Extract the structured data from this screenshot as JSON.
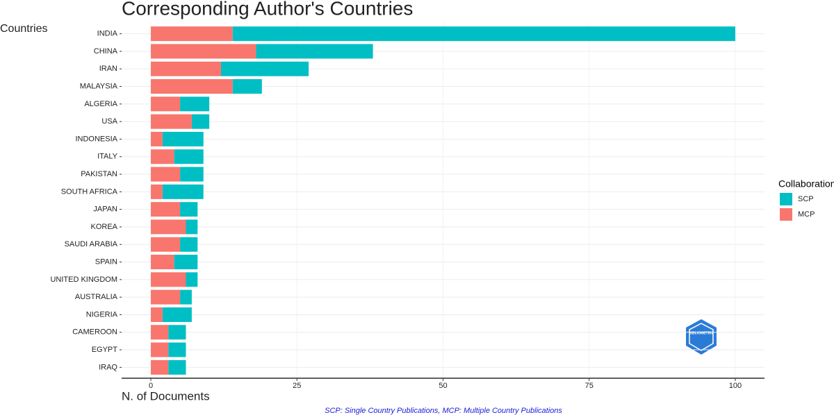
{
  "chart_data": {
    "type": "stacked-bar-horizontal",
    "title": "Corresponding Author's Countries",
    "y_label": "Countries",
    "x_label": "N. of Documents",
    "caption": "SCP: Single Country Publications, MCP: Multiple Country Publications",
    "legend_title": "Collaboration",
    "logo_text": "BIBLIOMETRIX",
    "categories": [
      "INDIA",
      "CHINA",
      "IRAN",
      "MALAYSIA",
      "ALGERIA",
      "USA",
      "INDONESIA",
      "ITALY",
      "PAKISTAN",
      "SOUTH AFRICA",
      "JAPAN",
      "KOREA",
      "SAUDI ARABIA",
      "SPAIN",
      "UNITED KINGDOM",
      "AUSTRALIA",
      "NIGERIA",
      "CAMEROON",
      "EGYPT",
      "IRAQ"
    ],
    "series": [
      {
        "name": "SCP",
        "color": "#00bfc4",
        "values": [
          86,
          20,
          15,
          5,
          5,
          3,
          7,
          5,
          4,
          7,
          3,
          2,
          3,
          4,
          2,
          2,
          5,
          3,
          3,
          3
        ]
      },
      {
        "name": "MCP",
        "color": "#f8766d",
        "values": [
          14,
          18,
          12,
          14,
          5,
          7,
          2,
          4,
          5,
          2,
          5,
          6,
          5,
          4,
          6,
          5,
          2,
          3,
          3,
          3
        ]
      }
    ],
    "xlim": [
      -5,
      105
    ],
    "xticks": [
      0,
      25,
      50,
      75,
      100
    ],
    "grid": true,
    "legend": "right"
  }
}
